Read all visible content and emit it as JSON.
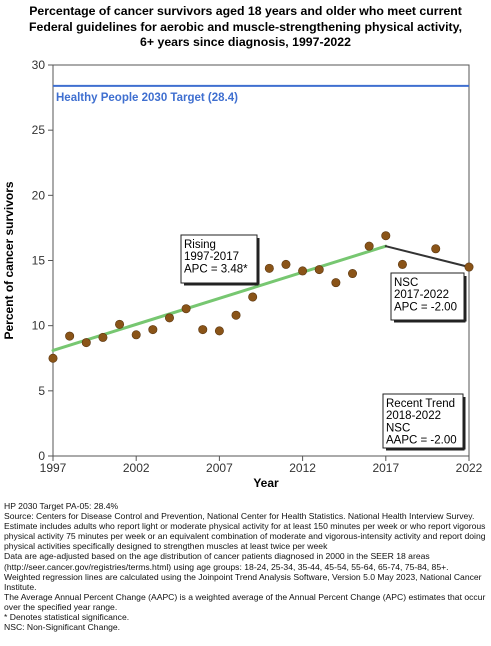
{
  "title_lines": [
    "Percentage of cancer survivors aged 18 years and older who meet current",
    "Federal guidelines for aerobic and muscle-strengthening physical activity,",
    "6+ years since diagnosis,  1997-2022"
  ],
  "colors": {
    "target_line": "#3f6fd0",
    "rising_segment": "#77c771",
    "recent_segment": "#333333",
    "points": "#8a5418"
  },
  "chart_data": {
    "type": "scatter",
    "title": "Percentage of cancer survivors aged 18 years and older who meet current Federal guidelines for aerobic and muscle-strengthening physical activity, 6+ years since diagnosis,  1997-2022",
    "xlabel": "Year",
    "ylabel": "Percent of cancer survivors",
    "xlim": [
      1997,
      2022
    ],
    "ylim": [
      0,
      30
    ],
    "x_ticks": [
      "1997",
      "2002",
      "2007",
      "2012",
      "2017",
      "2022"
    ],
    "y_ticks": [
      "0",
      "5",
      "10",
      "15",
      "20",
      "25",
      "30"
    ],
    "grid": false,
    "target": {
      "label": "Healthy People 2030 Target (28.4)",
      "value": 28.4
    },
    "series": [
      {
        "x": [
          1997,
          1998,
          1999,
          2000,
          2001,
          2002,
          2003,
          2004,
          2005,
          2006,
          2007,
          2008,
          2009,
          2010,
          2011,
          2012,
          2013,
          2014,
          2015,
          2016,
          2017,
          2018,
          2020,
          2022
        ],
        "y": [
          7.5,
          9.2,
          8.7,
          9.1,
          10.1,
          9.3,
          9.7,
          10.6,
          11.3,
          9.7,
          9.6,
          10.8,
          12.2,
          14.4,
          14.7,
          14.2,
          14.3,
          13.3,
          14.0,
          16.1,
          16.9,
          14.7,
          15.9,
          14.5
        ]
      }
    ],
    "trend_lines": [
      {
        "x": [
          1997,
          2017
        ],
        "y": [
          8.1,
          16.1
        ]
      },
      {
        "x": [
          2017,
          2022
        ],
        "y": [
          16.1,
          14.5
        ]
      }
    ],
    "annotations": [
      {
        "lines": [
          "Rising",
          "1997-2017",
          "APC =  3.48*"
        ]
      },
      {
        "lines": [
          "NSC",
          "2017-2022",
          "APC = -2.00"
        ]
      },
      {
        "lines": [
          "Recent Trend",
          "2018-2022",
          "NSC",
          "AAPC = -2.00"
        ]
      }
    ]
  },
  "footer_lines": [
    "HP 2030 Target PA-05: 28.4%",
    "Source: Centers for Disease Control and Prevention, National Center for Health Statistics. National Health Interview Survey.",
    "Estimate includes adults who report light or moderate physical activity for at least 150 minutes per week or who report vigorous physical activity 75 minutes per week or an equivalent combination of moderate and vigorous-intensity activity and report doing physical activities specifically designed to strengthen muscles at least twice per week",
    "Data are age-adjusted based on the age distribution of cancer patients diagnosed in 2000 in the SEER 18 areas (http://seer.cancer.gov/registries/terms.html) using age groups: 18-24, 25-34, 35-44, 45-54, 55-64, 65-74, 75-84, 85+.",
    "Weighted regression lines are calculated using the Joinpoint Trend Analysis Software, Version 5.0 May 2023, National Cancer Institute.",
    "The Average Annual Percent Change (AAPC) is a weighted average of the Annual Percent Change (APC) estimates that occur over the specified year range.",
    "* Denotes statistical significance.",
    "NSC: Non-Significant Change."
  ]
}
